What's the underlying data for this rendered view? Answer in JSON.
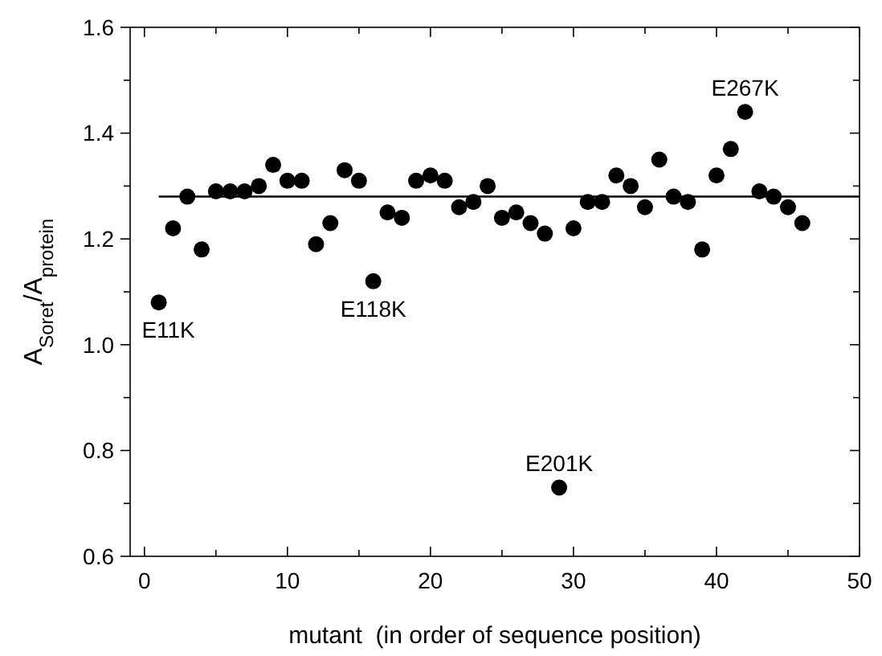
{
  "chart_data": {
    "type": "scatter",
    "xlabel": "mutant  (in order of sequence position)",
    "ylabel": "A$_{Soret}$/A$_{protein}$",
    "x": [
      1,
      2,
      3,
      4,
      5,
      6,
      7,
      8,
      9,
      10,
      11,
      12,
      13,
      14,
      15,
      16,
      17,
      18,
      19,
      20,
      21,
      22,
      23,
      24,
      25,
      26,
      27,
      28,
      29,
      30,
      31,
      32,
      33,
      34,
      35,
      36,
      37,
      38,
      39,
      40,
      41,
      42,
      43,
      44,
      45,
      46
    ],
    "series": [
      {
        "color": "#000000",
        "values": [
          1.08,
          1.22,
          1.28,
          1.18,
          1.29,
          1.29,
          1.29,
          1.3,
          1.34,
          1.31,
          1.31,
          1.19,
          1.23,
          1.33,
          1.31,
          1.12,
          1.25,
          1.24,
          1.31,
          1.32,
          1.31,
          1.26,
          1.27,
          1.3,
          1.24,
          1.25,
          1.23,
          1.21,
          0.73,
          1.22,
          1.27,
          1.27,
          1.32,
          1.3,
          1.26,
          1.35,
          1.28,
          1.27,
          1.18,
          1.32,
          1.37,
          1.44,
          1.29,
          1.28,
          1.26,
          1.23
        ]
      }
    ],
    "marker": "circle",
    "xlim": [
      -1,
      50
    ],
    "ylim": [
      0.6,
      1.6
    ],
    "xticks": [
      0,
      {
        "value": 5,
        "label": null
      },
      10,
      {
        "value": 15,
        "label": null
      },
      20,
      {
        "value": 25,
        "label": null
      },
      30,
      {
        "value": 35,
        "label": null
      },
      40,
      {
        "value": 45,
        "label": null
      },
      50
    ],
    "yticks": [
      0.6,
      {
        "value": 0.7,
        "label": null
      },
      0.8,
      {
        "value": 0.9,
        "label": null
      },
      {
        "value": 1.0,
        "label": "1.0"
      },
      {
        "value": 1.1,
        "label": null
      },
      1.2,
      {
        "value": 1.3,
        "label": null
      },
      1.4,
      {
        "value": 1.5,
        "label": null
      },
      1.6
    ],
    "ref_lines": [
      {
        "axis": "y",
        "value": 1.28,
        "color": "#000000"
      }
    ],
    "annotations": [
      {
        "text": "E11K",
        "x": 1,
        "y": 1.08
      },
      {
        "text": "E118K",
        "x": 16,
        "y": 1.12
      },
      {
        "text": "E201K",
        "x": 29,
        "y": 0.73
      },
      {
        "text": "E267K",
        "x": 42,
        "y": 1.44
      }
    ],
    "grid": false
  }
}
